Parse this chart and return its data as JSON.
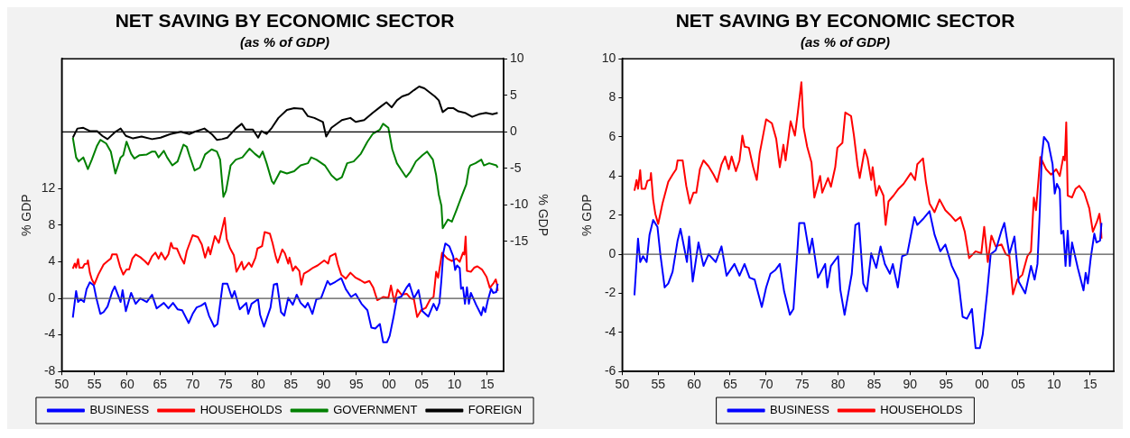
{
  "chart_data": [
    {
      "type": "line",
      "title": "NET SAVING BY ECONOMIC SECTOR",
      "subtitle": "(as % of GDP)",
      "ylabel": "% GDP",
      "y2label": "% GDP",
      "xlim": [
        1950,
        2017.5
      ],
      "xticks": [
        {
          "value": 1950,
          "label": "50"
        },
        {
          "value": 1955,
          "label": "55"
        },
        {
          "value": 1960,
          "label": "60"
        },
        {
          "value": 1965,
          "label": "65"
        },
        {
          "value": 1970,
          "label": "70"
        },
        {
          "value": 1975,
          "label": "75"
        },
        {
          "value": 1980,
          "label": "80"
        },
        {
          "value": 1985,
          "label": "85"
        },
        {
          "value": 1990,
          "label": "90"
        },
        {
          "value": 1995,
          "label": "95"
        },
        {
          "value": 2000,
          "label": "00"
        },
        {
          "value": 2005,
          "label": "05"
        },
        {
          "value": 2010,
          "label": "10"
        },
        {
          "value": 2015,
          "label": "15"
        }
      ],
      "ylim": [
        -8,
        26.2
      ],
      "yticks": [
        -8,
        -4,
        0,
        4,
        8,
        12
      ],
      "y2lim": [
        -32.8,
        10
      ],
      "y2ticks": [
        -15,
        -10,
        -5,
        0,
        5,
        10
      ],
      "legend": "bottom",
      "grid": false,
      "marker": "none",
      "ref_lines": [
        {
          "axis": "y",
          "value": 0,
          "color": "#555555"
        },
        {
          "axis": "y2",
          "value": 0,
          "color": "#000000"
        }
      ],
      "series": [
        {
          "name": "BUSINESS",
          "color": "#0000ff",
          "x": [
            1951.7,
            1952.2,
            1952.5,
            1952.9,
            1953.4,
            1953.8,
            1954.3,
            1954.9,
            1955.3,
            1955.9,
            1956.4,
            1957.0,
            1957.7,
            1958.1,
            1959.0,
            1959.3,
            1959.8,
            1960.6,
            1961.3,
            1962.0,
            1963.0,
            1963.8,
            1964.5,
            1965.6,
            1966.3,
            1967.0,
            1967.7,
            1968.4,
            1969.4,
            1970.0,
            1970.6,
            1971.3,
            1971.9,
            1972.5,
            1973.3,
            1973.8,
            1974.6,
            1975.3,
            1976.0,
            1976.4,
            1977.2,
            1978.2,
            1978.5,
            1979.0,
            1980.0,
            1980.3,
            1980.9,
            1981.9,
            1982.4,
            1982.9,
            1983.5,
            1984.0,
            1984.6,
            1985.3,
            1985.9,
            1986.5,
            1987.2,
            1987.6,
            1988.3,
            1988.9,
            1989.6,
            1990.6,
            1991.0,
            1991.8,
            1992.7,
            1993.4,
            1994.2,
            1994.9,
            1995.8,
            1996.7,
            1997.3,
            1997.9,
            1998.6,
            1999.1,
            1999.7,
            2000.1,
            2000.7,
            2001.2,
            2001.9,
            2002.7,
            2003.1,
            2003.8,
            2004.5,
            2005.1,
            2006.0,
            2006.8,
            2007.3,
            2007.7,
            2008.0,
            2008.3,
            2008.6,
            2009.2,
            2009.8,
            2010.1,
            2010.4,
            2010.8,
            2011.0,
            2011.3,
            2011.6,
            2011.9,
            2012.2,
            2012.5,
            2013.3,
            2014.1,
            2014.4,
            2014.7,
            2015.1,
            2015.6,
            2015.9,
            2016.4,
            2016.6
          ],
          "values": [
            -2.1,
            0.8,
            -0.4,
            -0.1,
            -0.4,
            1.0,
            1.75,
            1.4,
            0,
            -1.7,
            -1.5,
            -0.9,
            0.7,
            1.3,
            -0.4,
            0.9,
            -1.4,
            0.6,
            -0.6,
            0,
            -0.4,
            0.4,
            -1.1,
            -0.5,
            -1.1,
            -0.5,
            -1.2,
            -1.3,
            -2.7,
            -1.7,
            -1.0,
            -0.8,
            -0.5,
            -1.9,
            -3.1,
            -2.8,
            1.6,
            1.6,
            0.05,
            0.8,
            -1.2,
            -0.5,
            -1.7,
            -0.6,
            -0.1,
            -1.8,
            -3.1,
            -1.0,
            1.5,
            1.6,
            -1.5,
            -1.9,
            0.05,
            -0.7,
            0.4,
            -0.5,
            -1.0,
            -0.5,
            -1.7,
            -0.1,
            0,
            1.9,
            1.5,
            1.8,
            2.2,
            1.0,
            0.15,
            0.5,
            -0.6,
            -1.3,
            -3.2,
            -3.3,
            -2.8,
            -4.8,
            -4.8,
            -4.1,
            -2.0,
            0,
            0.2,
            1.2,
            1.6,
            0,
            0.9,
            -1.4,
            -2.0,
            -0.6,
            -1.3,
            -0.5,
            2.0,
            5.0,
            6.0,
            5.7,
            4.6,
            3.1,
            3.6,
            3.3,
            1.05,
            1.2,
            -0.6,
            1.2,
            -0.6,
            0.6,
            -0.7,
            -1.85,
            -0.95,
            -1.5,
            -0.2,
            1.05,
            0.6,
            0.7,
            1.6
          ]
        },
        {
          "name": "HOUSEHOLDS",
          "color": "#ff0000",
          "x": [
            1951.7,
            1952.0,
            1952.2,
            1952.5,
            1952.7,
            1953.2,
            1953.5,
            1953.9,
            1954.0,
            1954.3,
            1954.6,
            1955.0,
            1955.6,
            1956.4,
            1957.0,
            1957.5,
            1957.7,
            1958.4,
            1958.9,
            1959.4,
            1959.9,
            1960.3,
            1960.8,
            1961.3,
            1962.0,
            1962.7,
            1963.2,
            1963.8,
            1964.3,
            1964.8,
            1965.2,
            1965.8,
            1966.3,
            1966.7,
            1967.0,
            1967.6,
            1968.2,
            1968.7,
            1969.1,
            1970.0,
            1970.8,
            1971.4,
            1971.9,
            1972.4,
            1972.7,
            1973.4,
            1974.0,
            1974.4,
            1974.9,
            1975.2,
            1975.7,
            1976.3,
            1976.7,
            1977.5,
            1977.8,
            1978.6,
            1979.0,
            1979.6,
            1979.9,
            1980.6,
            1981.0,
            1981.8,
            1982.2,
            1982.7,
            1983.0,
            1983.7,
            1984.1,
            1984.6,
            1984.8,
            1985.3,
            1985.7,
            1986.3,
            1986.6,
            1987.0,
            1987.7,
            1988.4,
            1989.1,
            1990.1,
            1990.7,
            1991.0,
            1991.8,
            1992.2,
            1992.7,
            1993.4,
            1994.1,
            1994.9,
            1995.6,
            1996.3,
            1997.0,
            1997.6,
            1998.2,
            1999.1,
            1999.9,
            2000.3,
            2000.8,
            2001.3,
            2001.9,
            2002.7,
            2003.3,
            2003.8,
            2004.3,
            2004.9,
            2005.6,
            2006.3,
            2006.8,
            2007.2,
            2007.5,
            2008.1,
            2008.9,
            2009.6,
            2010.3,
            2010.8,
            2011.3,
            2011.5,
            2011.7,
            2011.9,
            2012.5,
            2013.0,
            2013.5,
            2014.2,
            2014.9,
            2015.4,
            2016.0,
            2016.3,
            2016.5,
            2016.6
          ],
          "values": [
            3.25,
            3.8,
            3.35,
            4.3,
            3.35,
            3.35,
            3.75,
            3.8,
            4.15,
            2.8,
            2.07,
            1.55,
            2.6,
            3.7,
            4.07,
            4.35,
            4.8,
            4.8,
            3.5,
            2.6,
            3.15,
            3.15,
            4.35,
            4.8,
            4.5,
            4.07,
            3.7,
            4.6,
            5.0,
            4.35,
            5.0,
            4.25,
            4.8,
            6.07,
            5.5,
            5.45,
            4.45,
            3.8,
            5.15,
            6.9,
            6.7,
            5.9,
            4.45,
            5.6,
            4.8,
            6.8,
            6.07,
            7.25,
            8.8,
            6.5,
            5.5,
            4.7,
            2.9,
            4.0,
            3.15,
            3.9,
            3.45,
            4.45,
            5.45,
            5.7,
            7.25,
            7.07,
            6.07,
            4.55,
            3.9,
            5.35,
            4.9,
            3.8,
            4.45,
            3.0,
            3.5,
            3.0,
            1.5,
            2.7,
            3.0,
            3.35,
            3.6,
            4.15,
            3.8,
            4.6,
            4.9,
            3.7,
            2.6,
            2.15,
            2.8,
            2.25,
            2.0,
            1.7,
            1.9,
            1.15,
            -0.2,
            0.15,
            0.05,
            1.4,
            -0.4,
            0.95,
            0.4,
            0.5,
            0,
            -0.1,
            -2.05,
            -1.3,
            -1.05,
            -0.1,
            0.15,
            2.9,
            2.25,
            4.97,
            4.35,
            4.07,
            4.35,
            4.0,
            5.0,
            4.8,
            6.75,
            3.0,
            2.9,
            3.35,
            3.5,
            3.15,
            2.35,
            1.15,
            1.7,
            2.07,
            1.5,
            0.8
          ]
        },
        {
          "name": "GOVERNMENT",
          "color": "#008000",
          "axis": "y2",
          "x": [
            1951.7,
            1952.2,
            1952.6,
            1953.3,
            1954.0,
            1954.6,
            1955.4,
            1955.9,
            1956.8,
            1957.5,
            1958.2,
            1959.0,
            1959.4,
            1959.9,
            1960.6,
            1961.1,
            1961.9,
            1963.0,
            1963.8,
            1964.3,
            1964.8,
            1965.6,
            1966.1,
            1966.9,
            1967.7,
            1968.6,
            1969.1,
            1969.5,
            1970.3,
            1971.1,
            1971.9,
            1972.9,
            1973.7,
            1974.2,
            1974.7,
            1975.1,
            1975.8,
            1976.6,
            1977.6,
            1978.7,
            1979.5,
            1980.2,
            1980.7,
            1981.3,
            1982.1,
            1982.4,
            1983.4,
            1984.4,
            1985.5,
            1986.5,
            1987.6,
            1988.1,
            1988.9,
            1990.2,
            1991.2,
            1992.0,
            1992.8,
            1993.6,
            1994.6,
            1995.7,
            1996.7,
            1997.5,
            1998.6,
            1999.1,
            1999.9,
            2000.5,
            2001.2,
            2002.0,
            2002.6,
            2003.3,
            2004.1,
            2005.1,
            2005.8,
            2006.7,
            2007.2,
            2007.6,
            2008.0,
            2008.2,
            2009.0,
            2009.6,
            2010.3,
            2011.1,
            2011.8,
            2012.2,
            2012.4,
            2013.2,
            2014.1,
            2014.5,
            2015.3,
            2016.4,
            2016.6
          ],
          "values": [
            -0.8,
            -3.5,
            -4.05,
            -3.5,
            -5.1,
            -3.8,
            -1.9,
            -1.1,
            -1.6,
            -2.7,
            -5.7,
            -3.5,
            -3.2,
            -1.35,
            -3.0,
            -3.65,
            -3.2,
            -3.1,
            -2.7,
            -2.7,
            -3.5,
            -2.6,
            -3.5,
            -4.6,
            -4.05,
            -1.75,
            -2.05,
            -3.2,
            -5.3,
            -4.9,
            -3.1,
            -2.4,
            -2.7,
            -3.8,
            -8.9,
            -8.1,
            -4.6,
            -3.8,
            -3.5,
            -2.3,
            -3.0,
            -3.5,
            -2.7,
            -4.3,
            -6.75,
            -7.1,
            -5.4,
            -5.7,
            -5.4,
            -4.6,
            -4.3,
            -3.5,
            -3.8,
            -4.6,
            -5.95,
            -6.6,
            -6.2,
            -4.3,
            -4.05,
            -3.0,
            -1.35,
            -0.3,
            0.3,
            1.1,
            0.55,
            -2.4,
            -4.3,
            -5.4,
            -6.2,
            -5.4,
            -4.05,
            -3.2,
            -2.7,
            -3.8,
            -5.95,
            -8.6,
            -10.1,
            -13.2,
            -12.0,
            -12.3,
            -10.7,
            -8.8,
            -7.2,
            -5.0,
            -4.6,
            -4.3,
            -3.8,
            -4.6,
            -4.3,
            -4.6,
            -4.9
          ]
        },
        {
          "name": "FOREIGN",
          "color": "#000000",
          "axis": "y2",
          "x": [
            1951.7,
            1952.4,
            1953.3,
            1954.3,
            1955.4,
            1956.2,
            1957.0,
            1958.2,
            1959.0,
            1959.8,
            1960.9,
            1962.2,
            1963.8,
            1965.1,
            1966.6,
            1968.2,
            1969.5,
            1970.3,
            1971.8,
            1972.9,
            1973.7,
            1974.5,
            1975.3,
            1976.6,
            1977.5,
            1978.1,
            1979.2,
            1980.0,
            1980.5,
            1981.3,
            1982.1,
            1983.1,
            1984.4,
            1985.5,
            1986.8,
            1987.6,
            1988.6,
            1989.9,
            1990.4,
            1991.2,
            1992.8,
            1994.1,
            1994.9,
            1996.2,
            1997.5,
            1998.8,
            1999.6,
            2000.4,
            2001.2,
            2002.0,
            2003.0,
            2003.8,
            2004.6,
            2005.4,
            2006.2,
            2007.0,
            2007.6,
            2008.2,
            2009.0,
            2009.8,
            2010.6,
            2011.6,
            2012.7,
            2013.7,
            2014.8,
            2015.8,
            2016.6
          ],
          "values": [
            -0.8,
            0.45,
            0.55,
            0.1,
            0.1,
            -0.55,
            -1.0,
            0.0,
            0.45,
            -0.55,
            -0.9,
            -0.65,
            -1.0,
            -0.8,
            -0.3,
            0.0,
            -0.3,
            0.0,
            0.45,
            -0.3,
            -1.1,
            -1.0,
            -0.8,
            0.45,
            1.1,
            0.3,
            0.3,
            -0.8,
            0.1,
            -0.3,
            0.55,
            1.9,
            3.0,
            3.25,
            3.15,
            2.15,
            1.9,
            1.35,
            -0.65,
            0.55,
            1.6,
            1.9,
            1.35,
            1.6,
            2.6,
            3.5,
            4.05,
            3.35,
            4.3,
            4.85,
            5.15,
            5.7,
            6.2,
            5.95,
            5.4,
            4.85,
            4.3,
            2.7,
            3.25,
            3.25,
            2.8,
            2.6,
            2.05,
            2.4,
            2.6,
            2.4,
            2.6
          ]
        }
      ]
    },
    {
      "type": "line",
      "title": "NET SAVING BY ECONOMIC SECTOR",
      "subtitle": "(as % of GDP)",
      "ylabel": "% GDP",
      "xlim": [
        1950,
        2018.3
      ],
      "xticks": [
        {
          "value": 1950,
          "label": "50"
        },
        {
          "value": 1955,
          "label": "55"
        },
        {
          "value": 1960,
          "label": "60"
        },
        {
          "value": 1965,
          "label": "65"
        },
        {
          "value": 1970,
          "label": "70"
        },
        {
          "value": 1975,
          "label": "75"
        },
        {
          "value": 1980,
          "label": "80"
        },
        {
          "value": 1985,
          "label": "85"
        },
        {
          "value": 1990,
          "label": "90"
        },
        {
          "value": 1995,
          "label": "95"
        },
        {
          "value": 2000,
          "label": "00"
        },
        {
          "value": 2005,
          "label": "05"
        },
        {
          "value": 2010,
          "label": "10"
        },
        {
          "value": 2015,
          "label": "15"
        }
      ],
      "ylim": [
        -6,
        10
      ],
      "yticks": [
        -6,
        -4,
        -2,
        0,
        2,
        4,
        6,
        8,
        10
      ],
      "legend": "bottom",
      "grid": false,
      "marker": "none",
      "ref_lines": [
        {
          "axis": "y",
          "value": 0,
          "color": "#555555"
        }
      ],
      "series": [
        {
          "name": "BUSINESS",
          "color": "#0000ff",
          "x": [
            1951.7,
            1952.2,
            1952.5,
            1952.9,
            1953.4,
            1953.8,
            1954.3,
            1954.9,
            1955.3,
            1955.9,
            1956.4,
            1957.0,
            1957.7,
            1958.1,
            1959.0,
            1959.3,
            1959.8,
            1960.6,
            1961.3,
            1962.0,
            1963.0,
            1963.8,
            1964.5,
            1965.6,
            1966.3,
            1967.0,
            1967.7,
            1968.4,
            1969.4,
            1970.0,
            1970.6,
            1971.3,
            1971.9,
            1972.5,
            1973.3,
            1973.8,
            1974.6,
            1975.3,
            1976.0,
            1976.4,
            1977.2,
            1978.2,
            1978.5,
            1979.0,
            1980.0,
            1980.3,
            1980.9,
            1981.9,
            1982.4,
            1982.9,
            1983.5,
            1984.0,
            1984.6,
            1985.3,
            1985.9,
            1986.5,
            1987.2,
            1987.6,
            1988.3,
            1988.9,
            1989.6,
            1990.6,
            1991.0,
            1991.8,
            1992.7,
            1993.4,
            1994.2,
            1994.9,
            1995.8,
            1996.7,
            1997.3,
            1997.9,
            1998.6,
            1999.1,
            1999.7,
            2000.1,
            2000.7,
            2001.2,
            2001.9,
            2002.7,
            2003.1,
            2003.8,
            2004.5,
            2005.1,
            2006.0,
            2006.8,
            2007.3,
            2007.7,
            2008.0,
            2008.3,
            2008.6,
            2009.2,
            2009.8,
            2010.1,
            2010.4,
            2010.8,
            2011.0,
            2011.3,
            2011.6,
            2011.9,
            2012.2,
            2012.5,
            2013.3,
            2014.1,
            2014.4,
            2014.7,
            2015.1,
            2015.6,
            2015.9,
            2016.4,
            2016.6
          ],
          "values": [
            -2.1,
            0.8,
            -0.4,
            -0.1,
            -0.4,
            1.0,
            1.75,
            1.4,
            0,
            -1.7,
            -1.5,
            -0.9,
            0.7,
            1.3,
            -0.4,
            0.9,
            -1.4,
            0.6,
            -0.6,
            0,
            -0.4,
            0.4,
            -1.1,
            -0.5,
            -1.1,
            -0.5,
            -1.2,
            -1.3,
            -2.7,
            -1.7,
            -1.0,
            -0.8,
            -0.5,
            -1.9,
            -3.1,
            -2.8,
            1.6,
            1.6,
            0.05,
            0.8,
            -1.2,
            -0.5,
            -1.7,
            -0.6,
            -0.1,
            -1.8,
            -3.1,
            -1.0,
            1.5,
            1.6,
            -1.5,
            -1.9,
            0.05,
            -0.7,
            0.4,
            -0.5,
            -1.0,
            -0.5,
            -1.7,
            -0.1,
            0,
            1.9,
            1.5,
            1.8,
            2.2,
            1.0,
            0.15,
            0.5,
            -0.6,
            -1.3,
            -3.2,
            -3.3,
            -2.8,
            -4.8,
            -4.8,
            -4.1,
            -2.0,
            0,
            0.2,
            1.2,
            1.6,
            0,
            0.9,
            -1.4,
            -2.0,
            -0.6,
            -1.3,
            -0.5,
            2.0,
            5.0,
            6.0,
            5.7,
            4.6,
            3.1,
            3.6,
            3.3,
            1.05,
            1.2,
            -0.6,
            1.2,
            -0.6,
            0.6,
            -0.7,
            -1.85,
            -0.95,
            -1.5,
            -0.2,
            1.05,
            0.6,
            0.7,
            1.6
          ]
        },
        {
          "name": "HOUSEHOLDS",
          "color": "#ff0000",
          "x": [
            1951.7,
            1952.0,
            1952.2,
            1952.5,
            1952.7,
            1953.2,
            1953.5,
            1953.9,
            1954.0,
            1954.3,
            1954.6,
            1955.0,
            1955.6,
            1956.4,
            1957.0,
            1957.5,
            1957.7,
            1958.4,
            1958.9,
            1959.4,
            1959.9,
            1960.3,
            1960.8,
            1961.3,
            1962.0,
            1962.7,
            1963.2,
            1963.8,
            1964.3,
            1964.8,
            1965.2,
            1965.8,
            1966.3,
            1966.7,
            1967.0,
            1967.6,
            1968.2,
            1968.7,
            1969.1,
            1970.0,
            1970.8,
            1971.4,
            1971.9,
            1972.4,
            1972.7,
            1973.4,
            1974.0,
            1974.4,
            1974.9,
            1975.2,
            1975.7,
            1976.3,
            1976.7,
            1977.5,
            1977.8,
            1978.6,
            1979.0,
            1979.6,
            1979.9,
            1980.6,
            1981.0,
            1981.8,
            1982.2,
            1982.7,
            1983.0,
            1983.7,
            1984.1,
            1984.6,
            1984.8,
            1985.3,
            1985.7,
            1986.3,
            1986.6,
            1987.0,
            1987.7,
            1988.4,
            1989.1,
            1990.1,
            1990.7,
            1991.0,
            1991.8,
            1992.2,
            1992.7,
            1993.4,
            1994.1,
            1994.9,
            1995.6,
            1996.3,
            1997.0,
            1997.6,
            1998.2,
            1999.1,
            1999.9,
            2000.3,
            2000.8,
            2001.3,
            2001.9,
            2002.7,
            2003.3,
            2003.8,
            2004.3,
            2004.9,
            2005.6,
            2006.3,
            2006.8,
            2007.2,
            2007.5,
            2008.1,
            2008.9,
            2009.6,
            2010.3,
            2010.8,
            2011.3,
            2011.5,
            2011.7,
            2011.9,
            2012.5,
            2013.0,
            2013.5,
            2014.2,
            2014.9,
            2015.4,
            2016.0,
            2016.3,
            2016.5,
            2016.6
          ],
          "values": [
            3.25,
            3.8,
            3.35,
            4.3,
            3.35,
            3.35,
            3.75,
            3.8,
            4.15,
            2.8,
            2.07,
            1.55,
            2.6,
            3.7,
            4.07,
            4.35,
            4.8,
            4.8,
            3.5,
            2.6,
            3.15,
            3.15,
            4.35,
            4.8,
            4.5,
            4.07,
            3.7,
            4.6,
            5.0,
            4.35,
            5.0,
            4.25,
            4.8,
            6.07,
            5.5,
            5.45,
            4.45,
            3.8,
            5.15,
            6.9,
            6.7,
            5.9,
            4.45,
            5.6,
            4.8,
            6.8,
            6.07,
            7.25,
            8.8,
            6.5,
            5.5,
            4.7,
            2.9,
            4.0,
            3.15,
            3.9,
            3.45,
            4.45,
            5.45,
            5.7,
            7.25,
            7.07,
            6.07,
            4.55,
            3.9,
            5.35,
            4.9,
            3.8,
            4.45,
            3.0,
            3.5,
            3.0,
            1.5,
            2.7,
            3.0,
            3.35,
            3.6,
            4.15,
            3.8,
            4.6,
            4.9,
            3.7,
            2.6,
            2.15,
            2.8,
            2.25,
            2.0,
            1.7,
            1.9,
            1.15,
            -0.2,
            0.15,
            0.05,
            1.4,
            -0.4,
            0.95,
            0.4,
            0.5,
            0,
            -0.1,
            -2.05,
            -1.3,
            -1.05,
            -0.1,
            0.15,
            2.9,
            2.25,
            4.97,
            4.35,
            4.07,
            4.35,
            4.0,
            5.0,
            4.8,
            6.75,
            3.0,
            2.9,
            3.35,
            3.5,
            3.15,
            2.35,
            1.15,
            1.7,
            2.07,
            1.5,
            0.8
          ]
        }
      ]
    }
  ]
}
